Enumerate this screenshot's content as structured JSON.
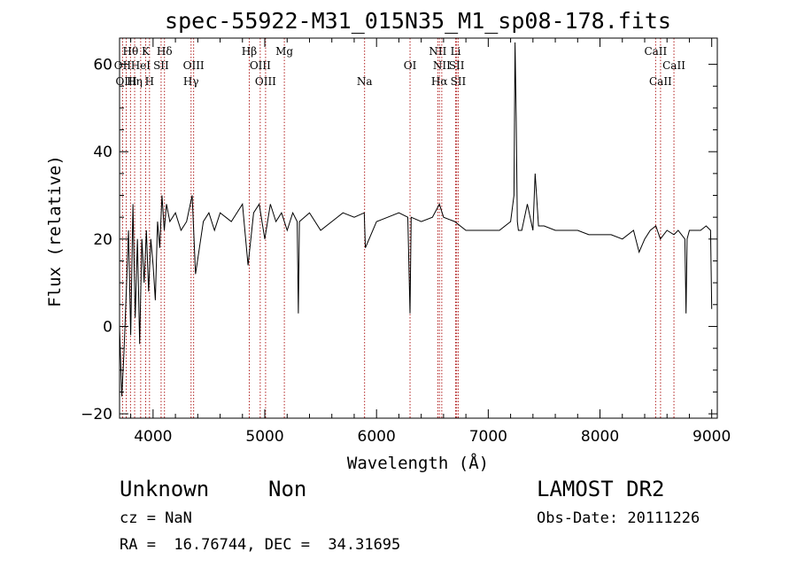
{
  "chart_data": {
    "type": "line",
    "title": "spec-55922-M31_015N35_M1_sp08-178.fits",
    "xlabel": "Wavelength (Å)",
    "ylabel": "Flux (relative)",
    "xlim": [
      3700,
      9050
    ],
    "ylim": [
      -21,
      66
    ],
    "xticks": [
      4000,
      5000,
      6000,
      7000,
      8000,
      9000
    ],
    "yticks": [
      -20,
      0,
      20,
      40,
      60
    ],
    "grid": false,
    "color": "#000000",
    "line_marker_color": "#b22222",
    "spectrum": {
      "x": [
        3700,
        3720,
        3740,
        3760,
        3780,
        3800,
        3820,
        3840,
        3860,
        3880,
        3900,
        3920,
        3940,
        3960,
        3980,
        4000,
        4020,
        4040,
        4060,
        4080,
        4100,
        4120,
        4150,
        4200,
        4250,
        4300,
        4350,
        4380,
        4450,
        4500,
        4550,
        4600,
        4700,
        4800,
        4850,
        4900,
        4950,
        5000,
        5050,
        5100,
        5150,
        5200,
        5250,
        5290,
        5300,
        5310,
        5400,
        5500,
        5600,
        5700,
        5800,
        5890,
        5900,
        6000,
        6100,
        6200,
        6280,
        6300,
        6310,
        6400,
        6500,
        6563,
        6600,
        6700,
        6800,
        6900,
        7000,
        7100,
        7200,
        7230,
        7240,
        7250,
        7260,
        7270,
        7300,
        7350,
        7400,
        7420,
        7450,
        7500,
        7600,
        7700,
        7800,
        7900,
        8000,
        8100,
        8200,
        8300,
        8350,
        8400,
        8450,
        8500,
        8540,
        8600,
        8662,
        8700,
        8760,
        8770,
        8780,
        8800,
        8850,
        8900,
        8950,
        8990,
        9000
      ],
      "y": [
        0,
        -16,
        -6,
        8,
        22,
        -2,
        28,
        2,
        20,
        -4,
        20,
        10,
        22,
        8,
        20,
        14,
        6,
        24,
        18,
        30,
        22,
        28,
        24,
        26,
        22,
        24,
        30,
        12,
        24,
        26,
        22,
        26,
        24,
        28,
        14,
        26,
        28,
        20,
        28,
        24,
        26,
        22,
        26,
        24,
        3,
        24,
        26,
        22,
        24,
        26,
        25,
        26,
        18,
        24,
        25,
        26,
        25,
        3,
        25,
        24,
        25,
        28,
        25,
        24,
        22,
        22,
        22,
        22,
        24,
        30,
        65,
        48,
        24,
        22,
        22,
        28,
        22,
        35,
        23,
        23,
        22,
        22,
        22,
        21,
        21,
        21,
        20,
        22,
        17,
        20,
        22,
        23,
        20,
        22,
        21,
        22,
        20,
        3,
        20,
        22,
        22,
        22,
        23,
        22,
        4
      ]
    },
    "spectral_lines": [
      {
        "name": "Hθ",
        "x": 3798,
        "row": 0
      },
      {
        "name": "K",
        "x": 3934,
        "row": 0
      },
      {
        "name": "Hδ",
        "x": 4102,
        "row": 0
      },
      {
        "name": "Hβ",
        "x": 4861,
        "row": 0
      },
      {
        "name": "Mg",
        "x": 5175,
        "row": 0
      },
      {
        "name": "NII",
        "x": 6548,
        "row": 0
      },
      {
        "name": "Li",
        "x": 6708,
        "row": 0
      },
      {
        "name": "CaII",
        "x": 8498,
        "row": 0
      },
      {
        "name": "OII",
        "x": 3727,
        "row": 1
      },
      {
        "name": "HeI",
        "x": 3889,
        "row": 1
      },
      {
        "name": "SII",
        "x": 4072,
        "row": 1
      },
      {
        "name": "OIII",
        "x": 4363,
        "row": 1
      },
      {
        "name": "OIII",
        "x": 4959,
        "row": 1
      },
      {
        "name": "OI",
        "x": 6300,
        "row": 1
      },
      {
        "name": "NII",
        "x": 6584,
        "row": 1
      },
      {
        "name": "SII",
        "x": 6717,
        "row": 1
      },
      {
        "name": "CaII",
        "x": 8662,
        "row": 1
      },
      {
        "name": "OIII",
        "x": 3760,
        "row": 2
      },
      {
        "name": "Hη",
        "x": 3835,
        "row": 2
      },
      {
        "name": "H",
        "x": 3968,
        "row": 2
      },
      {
        "name": "Hγ",
        "x": 4340,
        "row": 2
      },
      {
        "name": "OIII",
        "x": 5007,
        "row": 2
      },
      {
        "name": "Na",
        "x": 5893,
        "row": 2
      },
      {
        "name": "Hα",
        "x": 6563,
        "row": 2
      },
      {
        "name": "SII",
        "x": 6731,
        "row": 2
      },
      {
        "name": "CaII",
        "x": 8542,
        "row": 2
      }
    ]
  },
  "info": {
    "object_class": "Unknown",
    "subclass": "Non",
    "survey": "LAMOST DR2",
    "redshift": "cz = NaN",
    "obs_date": "Obs-Date: 20111226",
    "coords": "RA =  16.76744, DEC =  34.31695"
  }
}
